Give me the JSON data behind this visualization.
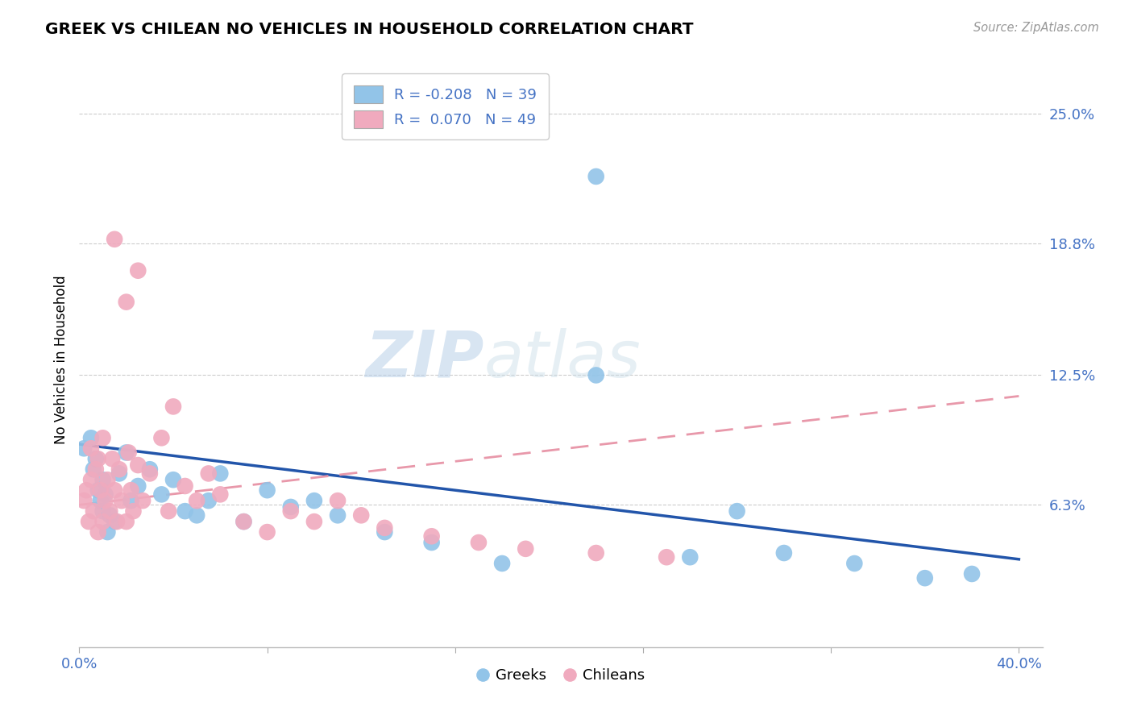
{
  "title": "GREEK VS CHILEAN NO VEHICLES IN HOUSEHOLD CORRELATION CHART",
  "source_text": "Source: ZipAtlas.com",
  "ylabel": "No Vehicles in Household",
  "ytick_labels": [
    "6.3%",
    "12.5%",
    "18.8%",
    "25.0%"
  ],
  "ytick_values": [
    0.063,
    0.125,
    0.188,
    0.25
  ],
  "xtick_minor_positions": [
    0.0,
    0.08,
    0.16,
    0.24,
    0.32,
    0.4
  ],
  "xlim": [
    0.0,
    0.41
  ],
  "ylim": [
    -0.005,
    0.27
  ],
  "greek_dot_color": "#92C4E8",
  "chilean_dot_color": "#F0AABE",
  "greek_line_color": "#2255AA",
  "chilean_line_color": "#E898AA",
  "R_greek": -0.208,
  "N_greek": 39,
  "R_chilean": 0.07,
  "N_chilean": 49,
  "watermark_zip": "ZIP",
  "watermark_atlas": "atlas",
  "legend_label_color": "#4472C4",
  "axis_label_color": "#4472C4",
  "greeks_x": [
    0.002,
    0.005,
    0.006,
    0.007,
    0.008,
    0.009,
    0.01,
    0.01,
    0.011,
    0.012,
    0.013,
    0.015,
    0.017,
    0.02,
    0.022,
    0.025,
    0.03,
    0.035,
    0.04,
    0.045,
    0.05,
    0.055,
    0.06,
    0.07,
    0.08,
    0.09,
    0.1,
    0.11,
    0.13,
    0.15,
    0.18,
    0.22,
    0.26,
    0.3,
    0.33,
    0.36,
    0.38,
    0.28,
    0.22
  ],
  "greeks_y": [
    0.09,
    0.095,
    0.08,
    0.085,
    0.07,
    0.065,
    0.075,
    0.06,
    0.068,
    0.05,
    0.058,
    0.055,
    0.078,
    0.088,
    0.065,
    0.072,
    0.08,
    0.068,
    0.075,
    0.06,
    0.058,
    0.065,
    0.078,
    0.055,
    0.07,
    0.062,
    0.065,
    0.058,
    0.05,
    0.045,
    0.035,
    0.125,
    0.038,
    0.04,
    0.035,
    0.028,
    0.03,
    0.06,
    0.22
  ],
  "chileans_x": [
    0.002,
    0.003,
    0.004,
    0.005,
    0.005,
    0.006,
    0.007,
    0.008,
    0.008,
    0.009,
    0.01,
    0.01,
    0.011,
    0.012,
    0.013,
    0.014,
    0.015,
    0.016,
    0.017,
    0.018,
    0.02,
    0.021,
    0.022,
    0.023,
    0.025,
    0.027,
    0.03,
    0.035,
    0.038,
    0.04,
    0.045,
    0.05,
    0.055,
    0.06,
    0.07,
    0.08,
    0.09,
    0.1,
    0.11,
    0.12,
    0.13,
    0.15,
    0.17,
    0.19,
    0.22,
    0.25,
    0.02,
    0.015,
    0.025
  ],
  "chileans_y": [
    0.065,
    0.07,
    0.055,
    0.09,
    0.075,
    0.06,
    0.08,
    0.05,
    0.085,
    0.07,
    0.055,
    0.095,
    0.065,
    0.075,
    0.06,
    0.085,
    0.07,
    0.055,
    0.08,
    0.065,
    0.055,
    0.088,
    0.07,
    0.06,
    0.082,
    0.065,
    0.078,
    0.095,
    0.06,
    0.11,
    0.072,
    0.065,
    0.078,
    0.068,
    0.055,
    0.05,
    0.06,
    0.055,
    0.065,
    0.058,
    0.052,
    0.048,
    0.045,
    0.042,
    0.04,
    0.038,
    0.16,
    0.19,
    0.175
  ]
}
